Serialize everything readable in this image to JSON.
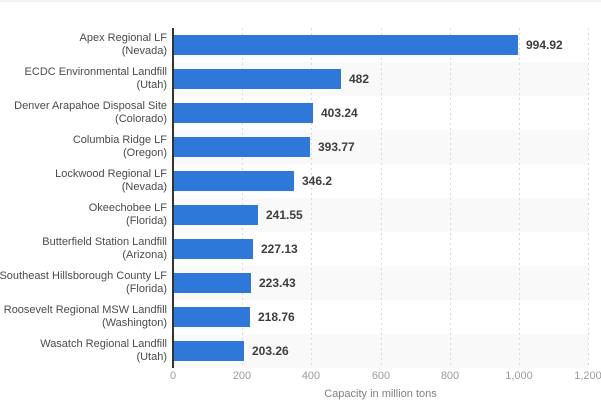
{
  "chart_data": {
    "type": "bar",
    "orientation": "horizontal",
    "xlabel": "Capacity in million tons",
    "xlim": [
      0,
      1200
    ],
    "x_ticks": [
      "0",
      "200",
      "400",
      "600",
      "800",
      "1,000",
      "1,200"
    ],
    "x_tick_values": [
      0,
      200,
      400,
      600,
      800,
      1000,
      1200
    ],
    "grid": "vertical-dashed",
    "legend": "none",
    "bar_color": "#2d78d8",
    "band_color": "#f9f9f9",
    "rows": [
      {
        "name": "Apex Regional LF",
        "state": "(Nevada)",
        "value": 994.92,
        "label": "994.92"
      },
      {
        "name": "ECDC Environmental Landfill",
        "state": "(Utah)",
        "value": 482,
        "label": "482"
      },
      {
        "name": "Denver Arapahoe Disposal Site",
        "state": "(Colorado)",
        "value": 403.24,
        "label": "403.24"
      },
      {
        "name": "Columbia Ridge LF",
        "state": "(Oregon)",
        "value": 393.77,
        "label": "393.77"
      },
      {
        "name": "Lockwood Regional LF",
        "state": "(Nevada)",
        "value": 346.2,
        "label": "346.2"
      },
      {
        "name": "Okeechobee LF",
        "state": "(Florida)",
        "value": 241.55,
        "label": "241.55"
      },
      {
        "name": "Butterfield Station Landfill",
        "state": "(Arizona)",
        "value": 227.13,
        "label": "227.13"
      },
      {
        "name": "Southeast Hillsborough County LF",
        "state": "(Florida)",
        "value": 223.43,
        "label": "223.43"
      },
      {
        "name": "Roosevelt Regional MSW Landfill",
        "state": "(Washington)",
        "value": 218.76,
        "label": "218.76"
      },
      {
        "name": "Wasatch Regional Landfill",
        "state": "(Utah)",
        "value": 203.26,
        "label": "203.26"
      }
    ]
  }
}
